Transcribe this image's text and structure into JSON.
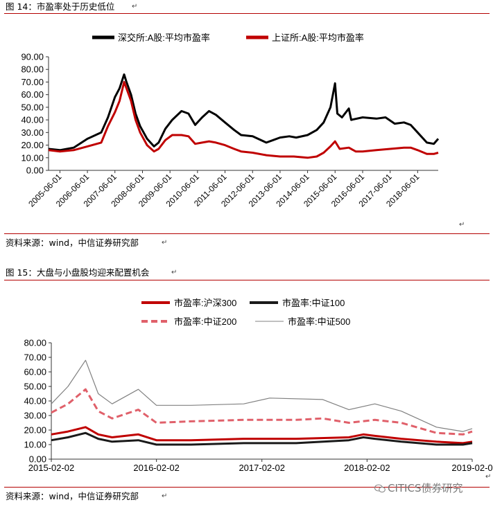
{
  "figures": [
    {
      "title": "图 14：市盈率处于历史低位",
      "source": "资料来源：wind，中信证券研究部"
    },
    {
      "title": "图 15：大盘与小盘股均迎来配置机会",
      "source": "资料来源：wind，中信证券研究部"
    }
  ],
  "watermark": "CITICS债券研究",
  "colors": {
    "black": "#000000",
    "red": "#c00000",
    "pink": "#e0606a",
    "gray": "#808080",
    "rule": "#b30000"
  },
  "chart_data": [
    {
      "type": "line",
      "title": "",
      "xlabel": "",
      "ylabel": "",
      "ylim": [
        0,
        90
      ],
      "yticks": [
        "0.00",
        "10.00",
        "20.00",
        "30.00",
        "40.00",
        "50.00",
        "60.00",
        "70.00",
        "80.00",
        "90.00"
      ],
      "xticks": [
        "2005-06-01",
        "2006-06-01",
        "2007-06-01",
        "2008-06-01",
        "2009-06-01",
        "2010-06-01",
        "2011-06-01",
        "2012-06-01",
        "2013-06-01",
        "2014-06-01",
        "2015-06-01",
        "2016-06-01",
        "2017-06-01",
        "2018-06-01"
      ],
      "xrange": [
        "2005-01-01",
        "2019-03-01"
      ],
      "grid": false,
      "legend": "top",
      "series": [
        {
          "name": "深交所:A股:平均市盈率",
          "color": "#000000",
          "points": [
            [
              "2005-01-01",
              17
            ],
            [
              "2005-06-01",
              16
            ],
            [
              "2005-12-01",
              18
            ],
            [
              "2006-06-01",
              25
            ],
            [
              "2006-12-01",
              30
            ],
            [
              "2007-03-01",
              42
            ],
            [
              "2007-06-01",
              58
            ],
            [
              "2007-08-01",
              65
            ],
            [
              "2007-10-01",
              76
            ],
            [
              "2007-11-01",
              70
            ],
            [
              "2008-01-01",
              60
            ],
            [
              "2008-03-01",
              45
            ],
            [
              "2008-05-01",
              35
            ],
            [
              "2008-08-01",
              25
            ],
            [
              "2008-11-01",
              19
            ],
            [
              "2009-01-01",
              22
            ],
            [
              "2009-04-01",
              33
            ],
            [
              "2009-07-01",
              40
            ],
            [
              "2009-11-01",
              47
            ],
            [
              "2010-02-01",
              45
            ],
            [
              "2010-05-01",
              36
            ],
            [
              "2010-08-01",
              42
            ],
            [
              "2010-11-01",
              47
            ],
            [
              "2011-02-01",
              44
            ],
            [
              "2011-06-01",
              38
            ],
            [
              "2011-10-01",
              32
            ],
            [
              "2012-01-01",
              28
            ],
            [
              "2012-06-01",
              27
            ],
            [
              "2012-12-01",
              22
            ],
            [
              "2013-03-01",
              24
            ],
            [
              "2013-06-01",
              26
            ],
            [
              "2013-10-01",
              27
            ],
            [
              "2014-01-01",
              26
            ],
            [
              "2014-06-01",
              28
            ],
            [
              "2014-10-01",
              32
            ],
            [
              "2015-01-01",
              38
            ],
            [
              "2015-04-01",
              50
            ],
            [
              "2015-06-01",
              69
            ],
            [
              "2015-07-01",
              45
            ],
            [
              "2015-09-01",
              42
            ],
            [
              "2015-12-01",
              49
            ],
            [
              "2016-01-01",
              40
            ],
            [
              "2016-06-01",
              42
            ],
            [
              "2016-12-01",
              41
            ],
            [
              "2017-04-01",
              42
            ],
            [
              "2017-08-01",
              37
            ],
            [
              "2017-12-01",
              38
            ],
            [
              "2018-03-01",
              36
            ],
            [
              "2018-06-01",
              30
            ],
            [
              "2018-10-01",
              22
            ],
            [
              "2019-01-01",
              21
            ],
            [
              "2019-03-01",
              25
            ]
          ]
        },
        {
          "name": "上证所:A股:平均市盈率",
          "color": "#c00000",
          "points": [
            [
              "2005-01-01",
              16
            ],
            [
              "2005-06-01",
              15
            ],
            [
              "2005-12-01",
              16
            ],
            [
              "2006-06-01",
              19
            ],
            [
              "2006-12-01",
              22
            ],
            [
              "2007-03-01",
              35
            ],
            [
              "2007-06-01",
              46
            ],
            [
              "2007-08-01",
              55
            ],
            [
              "2007-10-01",
              70
            ],
            [
              "2007-11-01",
              65
            ],
            [
              "2008-01-01",
              55
            ],
            [
              "2008-03-01",
              40
            ],
            [
              "2008-05-01",
              30
            ],
            [
              "2008-08-01",
              20
            ],
            [
              "2008-11-01",
              15
            ],
            [
              "2009-01-01",
              17
            ],
            [
              "2009-04-01",
              24
            ],
            [
              "2009-07-01",
              28
            ],
            [
              "2009-11-01",
              28
            ],
            [
              "2010-02-01",
              27
            ],
            [
              "2010-05-01",
              21
            ],
            [
              "2010-08-01",
              22
            ],
            [
              "2010-11-01",
              23
            ],
            [
              "2011-02-01",
              22
            ],
            [
              "2011-06-01",
              20
            ],
            [
              "2011-10-01",
              17
            ],
            [
              "2012-01-01",
              15
            ],
            [
              "2012-06-01",
              14
            ],
            [
              "2012-12-01",
              12
            ],
            [
              "2013-06-01",
              11
            ],
            [
              "2013-12-01",
              11
            ],
            [
              "2014-06-01",
              10
            ],
            [
              "2014-10-01",
              11
            ],
            [
              "2015-01-01",
              14
            ],
            [
              "2015-04-01",
              19
            ],
            [
              "2015-06-01",
              23
            ],
            [
              "2015-08-01",
              17
            ],
            [
              "2015-12-01",
              18
            ],
            [
              "2016-03-01",
              15
            ],
            [
              "2016-06-01",
              15
            ],
            [
              "2016-12-01",
              16
            ],
            [
              "2017-06-01",
              17
            ],
            [
              "2017-12-01",
              18
            ],
            [
              "2018-03-01",
              18
            ],
            [
              "2018-06-01",
              16
            ],
            [
              "2018-10-01",
              13
            ],
            [
              "2019-01-01",
              13
            ],
            [
              "2019-03-01",
              14
            ]
          ]
        }
      ]
    },
    {
      "type": "line",
      "title": "",
      "xlabel": "",
      "ylabel": "",
      "ylim": [
        0,
        80
      ],
      "yticks": [
        "0.00",
        "10.00",
        "20.00",
        "30.00",
        "40.00",
        "50.00",
        "60.00",
        "70.00",
        "80.00"
      ],
      "xticks": [
        "2015-02-02",
        "2016-02-02",
        "2017-02-02",
        "2018-02-02",
        "2019-02-0"
      ],
      "xrange": [
        "2015-02-02",
        "2019-02-02"
      ],
      "grid": false,
      "legend": "top",
      "series": [
        {
          "name": "市盈率:沪深300",
          "color": "#c00000",
          "style": "solid",
          "points": [
            [
              "2015-02-02",
              17
            ],
            [
              "2015-04-01",
              19
            ],
            [
              "2015-06-01",
              22
            ],
            [
              "2015-07-15",
              17
            ],
            [
              "2015-09-01",
              15
            ],
            [
              "2015-12-01",
              17
            ],
            [
              "2016-02-02",
              13
            ],
            [
              "2016-06-01",
              13
            ],
            [
              "2016-12-01",
              14
            ],
            [
              "2017-06-01",
              14
            ],
            [
              "2017-12-01",
              15
            ],
            [
              "2018-01-20",
              17
            ],
            [
              "2018-03-01",
              16
            ],
            [
              "2018-06-01",
              14
            ],
            [
              "2018-10-01",
              12
            ],
            [
              "2019-01-01",
              11
            ],
            [
              "2019-02-02",
              12
            ]
          ]
        },
        {
          "name": "市盈率:中证100",
          "color": "#1a1a1a",
          "style": "solid",
          "points": [
            [
              "2015-02-02",
              13
            ],
            [
              "2015-04-01",
              15
            ],
            [
              "2015-06-01",
              18
            ],
            [
              "2015-07-15",
              14
            ],
            [
              "2015-09-01",
              12
            ],
            [
              "2015-12-01",
              13
            ],
            [
              "2016-02-02",
              10
            ],
            [
              "2016-06-01",
              10
            ],
            [
              "2016-12-01",
              11
            ],
            [
              "2017-06-01",
              11
            ],
            [
              "2017-12-01",
              13
            ],
            [
              "2018-01-20",
              15
            ],
            [
              "2018-03-01",
              14
            ],
            [
              "2018-06-01",
              12
            ],
            [
              "2018-10-01",
              10
            ],
            [
              "2019-01-01",
              10
            ],
            [
              "2019-02-02",
              11
            ]
          ]
        },
        {
          "name": "市盈率:中证200",
          "color": "#e0606a",
          "style": "dashed",
          "points": [
            [
              "2015-02-02",
              32
            ],
            [
              "2015-04-01",
              38
            ],
            [
              "2015-06-01",
              48
            ],
            [
              "2015-07-15",
              33
            ],
            [
              "2015-09-01",
              28
            ],
            [
              "2015-12-01",
              34
            ],
            [
              "2016-02-02",
              25
            ],
            [
              "2016-06-01",
              26
            ],
            [
              "2016-12-01",
              27
            ],
            [
              "2017-06-01",
              27
            ],
            [
              "2017-09-01",
              28
            ],
            [
              "2017-12-01",
              25
            ],
            [
              "2018-03-01",
              27
            ],
            [
              "2018-06-01",
              25
            ],
            [
              "2018-10-01",
              18
            ],
            [
              "2019-01-01",
              17
            ],
            [
              "2019-02-02",
              19
            ]
          ]
        },
        {
          "name": "市盈率:中证500",
          "color": "#808080",
          "style": "thin",
          "points": [
            [
              "2015-02-02",
              38
            ],
            [
              "2015-04-01",
              50
            ],
            [
              "2015-06-01",
              68
            ],
            [
              "2015-07-15",
              45
            ],
            [
              "2015-09-01",
              38
            ],
            [
              "2015-12-01",
              48
            ],
            [
              "2016-02-02",
              37
            ],
            [
              "2016-06-01",
              37
            ],
            [
              "2016-12-01",
              38
            ],
            [
              "2017-03-01",
              42
            ],
            [
              "2017-09-01",
              41
            ],
            [
              "2017-12-01",
              34
            ],
            [
              "2018-03-01",
              38
            ],
            [
              "2018-06-01",
              33
            ],
            [
              "2018-10-01",
              22
            ],
            [
              "2019-01-01",
              19
            ],
            [
              "2019-02-02",
              21
            ]
          ]
        }
      ]
    }
  ]
}
